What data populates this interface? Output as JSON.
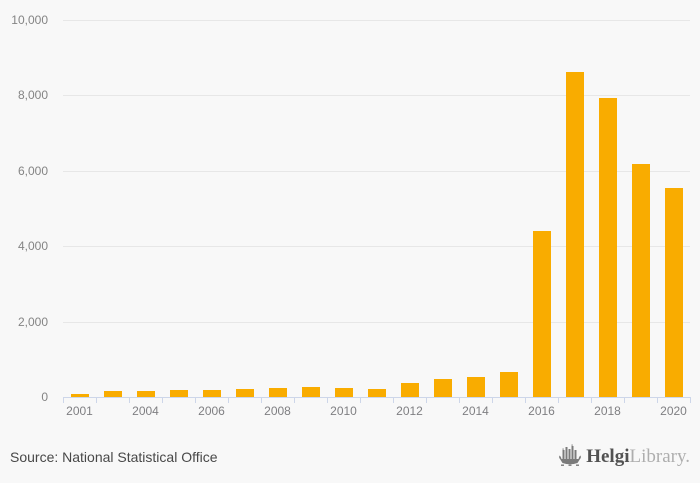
{
  "chart_data": {
    "type": "bar",
    "title": "",
    "categories": [
      "2001",
      "",
      "2004",
      "",
      "2006",
      "",
      "2008",
      "",
      "2010",
      "",
      "2012",
      "",
      "2014",
      "",
      "2016",
      "",
      "2018",
      "",
      "2020"
    ],
    "values": [
      90,
      150,
      150,
      195,
      185,
      205,
      230,
      255,
      245,
      200,
      360,
      480,
      530,
      660,
      4410,
      8610,
      7930,
      6190,
      5550
    ],
    "y_ticks": [
      0,
      2000,
      4000,
      6000,
      8000,
      10000
    ],
    "y_tick_labels": [
      "0",
      "2,000",
      "4,000",
      "6,000",
      "8,000",
      "10,000"
    ],
    "ylim": [
      0,
      10000
    ],
    "xlabel": "",
    "ylabel": "",
    "grid": true,
    "legend": false,
    "bar_color": "#f9ac00",
    "axis_color": "#cdd6e9",
    "gridline_color": "#e7e7e7",
    "background_color": "#f8f8f8"
  },
  "footer": {
    "source": "Source: National Statistical Office",
    "logo": {
      "brand_primary": "Helgi",
      "brand_secondary": "Library.",
      "icon": "helgi-ship-icon"
    }
  }
}
